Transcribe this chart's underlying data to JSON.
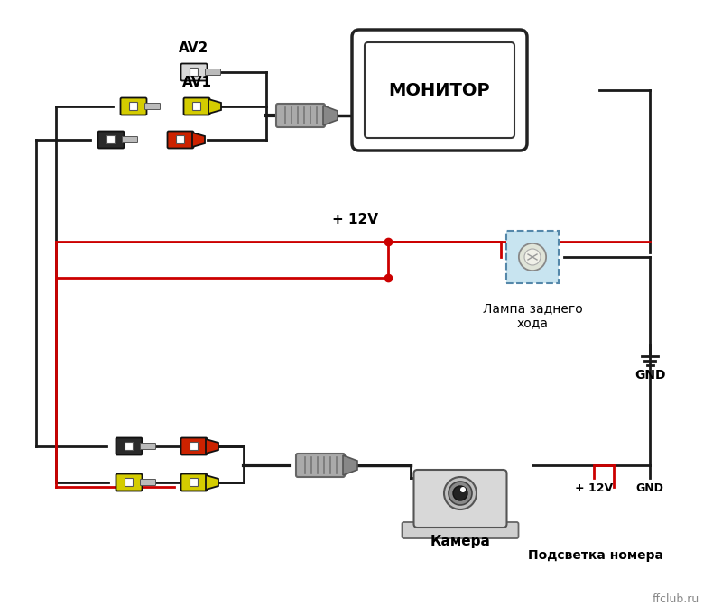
{
  "bg_color": "#ffffff",
  "fig_width": 8.0,
  "fig_height": 6.82,
  "monitor_label": "МОНИТОР",
  "lamp_label": "Лампа заднего\nхода",
  "camera_label": "Камера",
  "plate_label": "Подсветка номера",
  "gnd_label": "GND",
  "plus12v_label": "+ 12V",
  "plus12v_label2": "+ 12V",
  "gnd_label2": "GND",
  "av1_label": "AV1",
  "av2_label": "AV2",
  "site_label": "ffclub.ru",
  "wire_black": "#1a1a1a",
  "wire_red": "#cc0000",
  "connector_yellow": "#d4cc00",
  "connector_red": "#cc2200",
  "connector_black": "#2a2a2a",
  "connector_white": "#d8d8d8",
  "connector_gray": "#999999",
  "lamp_box_color": "#c8e4f0",
  "lamp_box_border": "#5588aa"
}
